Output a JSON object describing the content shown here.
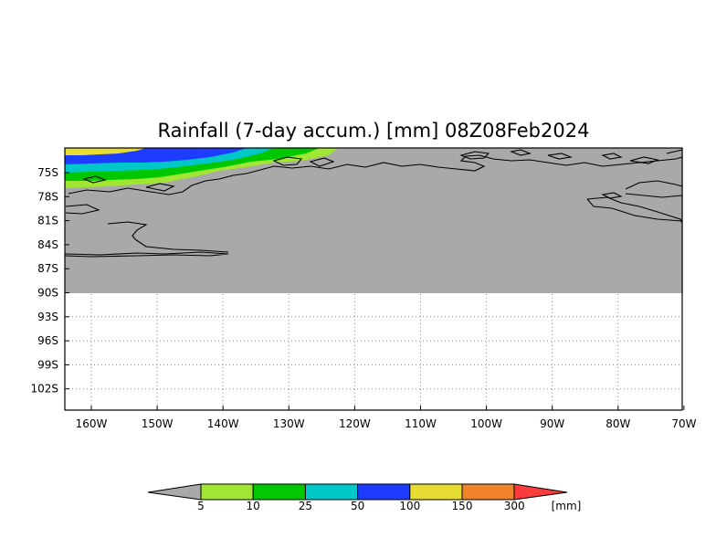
{
  "title": "Rainfall (7-day accum.) [mm] 08Z08Feb2024",
  "map": {
    "lat_labels": [
      "75S",
      "78S",
      "81S",
      "84S",
      "87S",
      "90S",
      "93S",
      "96S",
      "99S",
      "102S"
    ],
    "lon_labels": [
      "160W",
      "150W",
      "140W",
      "130W",
      "120W",
      "110W",
      "100W",
      "90W",
      "80W",
      "70W"
    ],
    "land_color": "#a9a9a9",
    "coastline_color": "#000000",
    "grid": "dotted"
  },
  "legend": {
    "unit": "[mm]",
    "ticks": [
      "5",
      "10",
      "25",
      "50",
      "100",
      "150",
      "300"
    ],
    "colors": {
      "below": "#a9a9a9",
      "bins": [
        "#a0e632",
        "#00c800",
        "#00c8c8",
        "#1e3cff",
        "#e6dc32",
        "#f08228",
        "#fa3c3c"
      ]
    }
  }
}
